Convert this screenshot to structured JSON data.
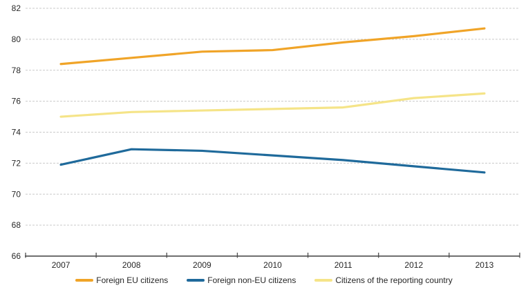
{
  "chart_data": {
    "type": "line",
    "title": "",
    "xlabel": "",
    "ylabel": "",
    "categories": [
      "2007",
      "2008",
      "2009",
      "2010",
      "2011",
      "2012",
      "2013"
    ],
    "series": [
      {
        "name": "Foreign EU citizens",
        "color": "#F0A428",
        "values": [
          78.4,
          78.8,
          79.2,
          79.3,
          79.8,
          80.2,
          80.7
        ]
      },
      {
        "name": "Foreign non-EU citizens",
        "color": "#1F6A9B",
        "values": [
          71.9,
          72.9,
          72.8,
          72.5,
          72.2,
          71.8,
          71.4
        ]
      },
      {
        "name": "Citizens of the reporting country",
        "color": "#F5E488",
        "values": [
          75.0,
          75.3,
          75.4,
          75.5,
          75.6,
          76.2,
          76.5
        ]
      }
    ],
    "ylim": [
      66,
      82
    ],
    "ytick_step": 2,
    "yticklabels": [
      "66",
      "68",
      "70",
      "72",
      "74",
      "76",
      "78",
      "80",
      "82"
    ],
    "grid": "horizontal-dashed",
    "legend_position": "bottom"
  },
  "style": {
    "grid_color": "#C9C9C9",
    "axis_color": "#6E6E6E",
    "tick_color": "#4D4D4D",
    "text_color": "#262626",
    "background": "#FFFFFF"
  }
}
